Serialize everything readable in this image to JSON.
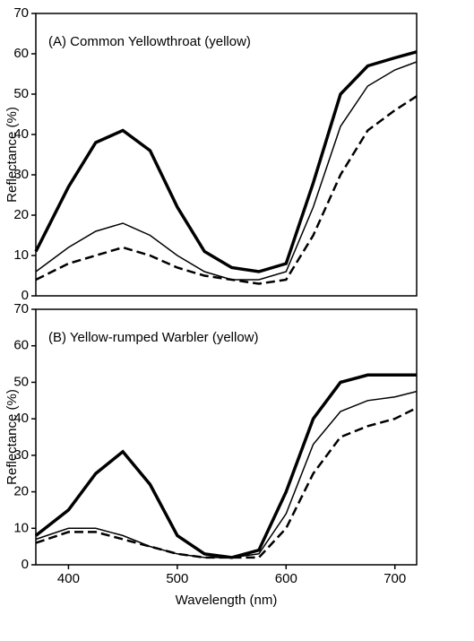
{
  "chart_data": [
    {
      "type": "line",
      "title": "(A) Common Yellowthroat (yellow)",
      "ylabel": "Reflectance (%)",
      "x": [
        370,
        400,
        425,
        450,
        475,
        500,
        525,
        550,
        575,
        600,
        625,
        650,
        675,
        700,
        720
      ],
      "xlim": [
        370,
        720
      ],
      "ylim": [
        0,
        70
      ],
      "yticks": [
        0,
        10,
        20,
        30,
        40,
        50,
        60,
        70
      ],
      "series": [
        {
          "color": "#000000",
          "width": 3.5,
          "dash": false,
          "values": [
            11,
            27,
            38,
            41,
            36,
            22,
            11,
            7,
            6,
            8,
            28,
            50,
            57,
            59,
            60.5
          ]
        },
        {
          "color": "#000000",
          "width": 1.5,
          "dash": false,
          "values": [
            6,
            12,
            16,
            18,
            15,
            10,
            6,
            4,
            4,
            6,
            22,
            42,
            52,
            56,
            58
          ]
        },
        {
          "color": "#000000",
          "width": 2.5,
          "dash": true,
          "values": [
            4,
            8,
            10,
            12,
            10,
            7,
            5,
            4,
            3,
            4,
            15,
            30,
            41,
            46,
            49.5
          ]
        }
      ]
    },
    {
      "type": "line",
      "title": "(B) Yellow-rumped Warbler (yellow)",
      "ylabel": "Reflectance (%)",
      "xlabel": "Wavelength (nm)",
      "x": [
        370,
        400,
        425,
        450,
        475,
        500,
        525,
        550,
        575,
        600,
        625,
        650,
        675,
        700,
        720
      ],
      "xlim": [
        370,
        720
      ],
      "xticks": [
        400,
        500,
        600,
        700
      ],
      "ylim": [
        0,
        70
      ],
      "yticks": [
        0,
        10,
        20,
        30,
        40,
        50,
        60,
        70
      ],
      "series": [
        {
          "color": "#000000",
          "width": 3.5,
          "dash": false,
          "values": [
            8,
            15,
            25,
            31,
            22,
            8,
            3,
            2,
            4,
            20,
            40,
            50,
            52,
            52,
            52
          ]
        },
        {
          "color": "#000000",
          "width": 1.5,
          "dash": false,
          "values": [
            7,
            10,
            10,
            8,
            5,
            3,
            2,
            2,
            3,
            14,
            33,
            42,
            45,
            46,
            47.5
          ]
        },
        {
          "color": "#000000",
          "width": 2.5,
          "dash": true,
          "values": [
            6,
            9,
            9,
            7,
            5,
            3,
            2,
            2,
            2,
            10,
            25,
            35,
            38,
            40,
            43
          ]
        }
      ]
    }
  ]
}
